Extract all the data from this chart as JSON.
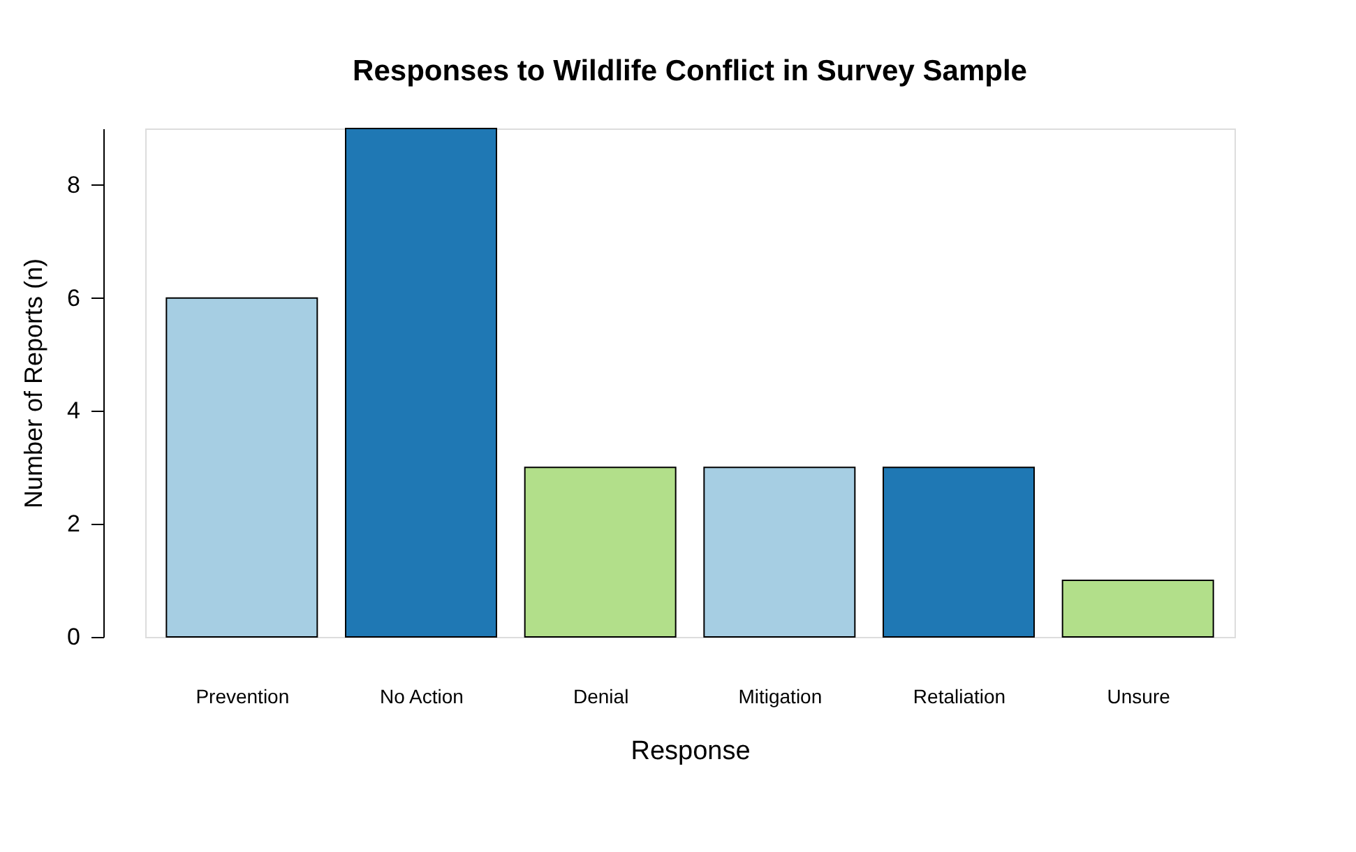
{
  "chart_data": {
    "type": "bar",
    "title": "Responses to Wildlife Conflict in Survey Sample",
    "xlabel": "Response",
    "ylabel": "Number of Reports (n)",
    "categories": [
      "Prevention",
      "No Action",
      "Denial",
      "Mitigation",
      "Retaliation",
      "Unsure"
    ],
    "values": [
      6,
      9,
      3,
      3,
      3,
      1
    ],
    "colors": [
      "#a6cee3",
      "#1f78b4",
      "#b2df8a",
      "#a6cee3",
      "#1f78b4",
      "#b2df8a"
    ],
    "ylim": [
      0,
      9
    ],
    "yticks": [
      0,
      2,
      4,
      6,
      8
    ],
    "grid": false,
    "legend": false
  }
}
